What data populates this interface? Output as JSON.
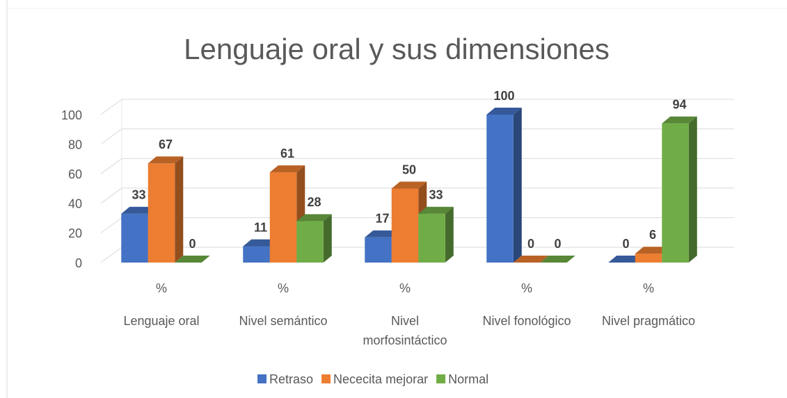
{
  "chart_data": {
    "type": "bar3d",
    "title": "Lenguaje oral y sus dimensiones",
    "categories": [
      "%",
      "%",
      "%",
      "%",
      "%"
    ],
    "category_groups": [
      "Lenguaje oral",
      "Nivel semántico",
      "Nivel morfosintáctico",
      "Nivel fonológico",
      "Nivel pragmático"
    ],
    "series": [
      {
        "name": "Retraso",
        "color": "#4472c4",
        "values": [
          33,
          11,
          17,
          100,
          0
        ]
      },
      {
        "name": "Nececita mejorar",
        "color": "#ed7d31",
        "values": [
          67,
          61,
          50,
          0,
          6
        ]
      },
      {
        "name": "Normal",
        "color": "#70ad47",
        "values": [
          0,
          28,
          33,
          0,
          94
        ]
      }
    ],
    "ylim": [
      0,
      100
    ],
    "yticks": [
      0,
      20,
      40,
      60,
      80,
      100
    ],
    "grid": true,
    "legend": "bottom"
  }
}
